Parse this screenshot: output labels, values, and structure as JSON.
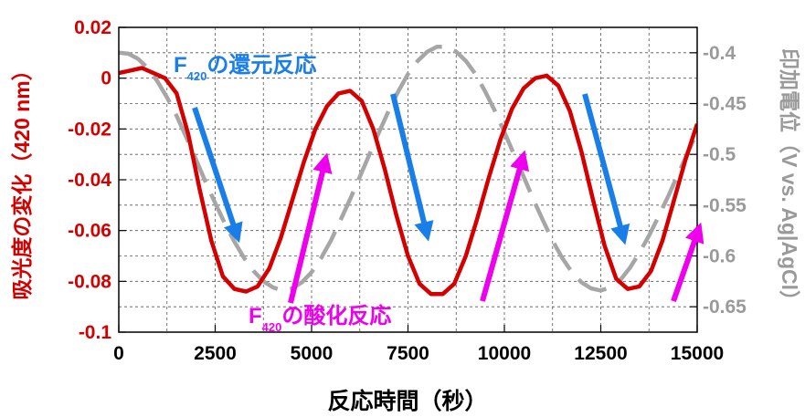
{
  "chart_data": {
    "type": "line",
    "xlabel": "反応時間（秒）",
    "ylabel_left": "吸光度の変化（420 nm）",
    "ylabel_right": "印加電位（V vs. Ag|AgCl）",
    "xlim": [
      0,
      15000
    ],
    "ylim_left": [
      -0.1,
      0.02
    ],
    "ylim_right": [
      -0.675,
      -0.375
    ],
    "x_ticks": [
      "0",
      "2500",
      "5000",
      "7500",
      "10000",
      "12500",
      "15000"
    ],
    "left_ticks": [
      "0.02",
      "0",
      "-0.02",
      "-0.04",
      "-0.06",
      "-0.08",
      "-0.1"
    ],
    "right_ticks": [
      "-0.4",
      "-0.45",
      "-0.5",
      "-0.55",
      "-0.6",
      "-0.65"
    ],
    "grid": true,
    "colors": {
      "absorbance": "#d40000",
      "potential": "#a6a6a6",
      "reduction": "#1a7ee8",
      "oxidation": "#ee00ee",
      "left_axis": "#d40000",
      "right_axis": "#9a9a9a"
    },
    "series": [
      {
        "axis": "left",
        "style": "solid",
        "x": [
          0,
          300,
          600,
          900,
          1200,
          1500,
          1800,
          2100,
          2400,
          2700,
          3000,
          3300,
          3600,
          3900,
          4200,
          4500,
          4800,
          5100,
          5400,
          5700,
          6000,
          6300,
          6600,
          6900,
          7200,
          7500,
          7800,
          8100,
          8400,
          8700,
          9000,
          9300,
          9600,
          9900,
          10200,
          10500,
          10800,
          11100,
          11400,
          11700,
          12000,
          12300,
          12600,
          12900,
          13200,
          13500,
          13800,
          14100,
          14400,
          14700,
          15000
        ],
        "values": [
          0.002,
          0.003,
          0.004,
          0.002,
          0.0,
          -0.006,
          -0.022,
          -0.044,
          -0.064,
          -0.078,
          -0.083,
          -0.084,
          -0.082,
          -0.075,
          -0.063,
          -0.048,
          -0.033,
          -0.02,
          -0.011,
          -0.006,
          -0.005,
          -0.009,
          -0.02,
          -0.036,
          -0.054,
          -0.07,
          -0.081,
          -0.085,
          -0.085,
          -0.081,
          -0.07,
          -0.055,
          -0.039,
          -0.024,
          -0.012,
          -0.004,
          0.0,
          0.001,
          -0.003,
          -0.013,
          -0.029,
          -0.048,
          -0.066,
          -0.079,
          -0.083,
          -0.082,
          -0.076,
          -0.064,
          -0.048,
          -0.032,
          -0.018
        ]
      },
      {
        "axis": "right",
        "style": "dashed",
        "x": [
          0,
          250,
          500,
          750,
          1000,
          1250,
          1500,
          1750,
          2000,
          2250,
          2500,
          2750,
          3000,
          3250,
          3500,
          3750,
          4000,
          4250,
          4500,
          4750,
          5000,
          5250,
          5500,
          5750,
          6000,
          6250,
          6500,
          6750,
          7000,
          7250,
          7500,
          7750,
          8000,
          8250,
          8500,
          8750,
          9000,
          9250,
          9500,
          9750,
          10000,
          10250,
          10500,
          10750,
          11000,
          11250,
          11500,
          11750,
          12000,
          12250,
          12500,
          12750,
          13000,
          13250,
          13500,
          13750,
          14000,
          14250,
          14500,
          14750,
          15000
        ],
        "values": [
          -0.4,
          -0.401,
          -0.406,
          -0.415,
          -0.428,
          -0.444,
          -0.462,
          -0.483,
          -0.505,
          -0.527,
          -0.548,
          -0.568,
          -0.586,
          -0.602,
          -0.615,
          -0.625,
          -0.631,
          -0.634,
          -0.632,
          -0.626,
          -0.616,
          -0.602,
          -0.585,
          -0.565,
          -0.544,
          -0.522,
          -0.5,
          -0.478,
          -0.457,
          -0.438,
          -0.421,
          -0.408,
          -0.399,
          -0.394,
          -0.394,
          -0.399,
          -0.408,
          -0.421,
          -0.438,
          -0.457,
          -0.478,
          -0.5,
          -0.522,
          -0.544,
          -0.565,
          -0.585,
          -0.602,
          -0.616,
          -0.626,
          -0.632,
          -0.634,
          -0.631,
          -0.624,
          -0.612,
          -0.597,
          -0.58,
          -0.561,
          -0.541,
          -0.52,
          -0.499,
          -0.478
        ]
      }
    ],
    "annotations": {
      "reduction": {
        "prefix": "F",
        "sub": "420",
        "text": "の還元反応"
      },
      "oxidation": {
        "prefix": "F",
        "sub": "420",
        "text": "の酸化反応"
      }
    }
  }
}
